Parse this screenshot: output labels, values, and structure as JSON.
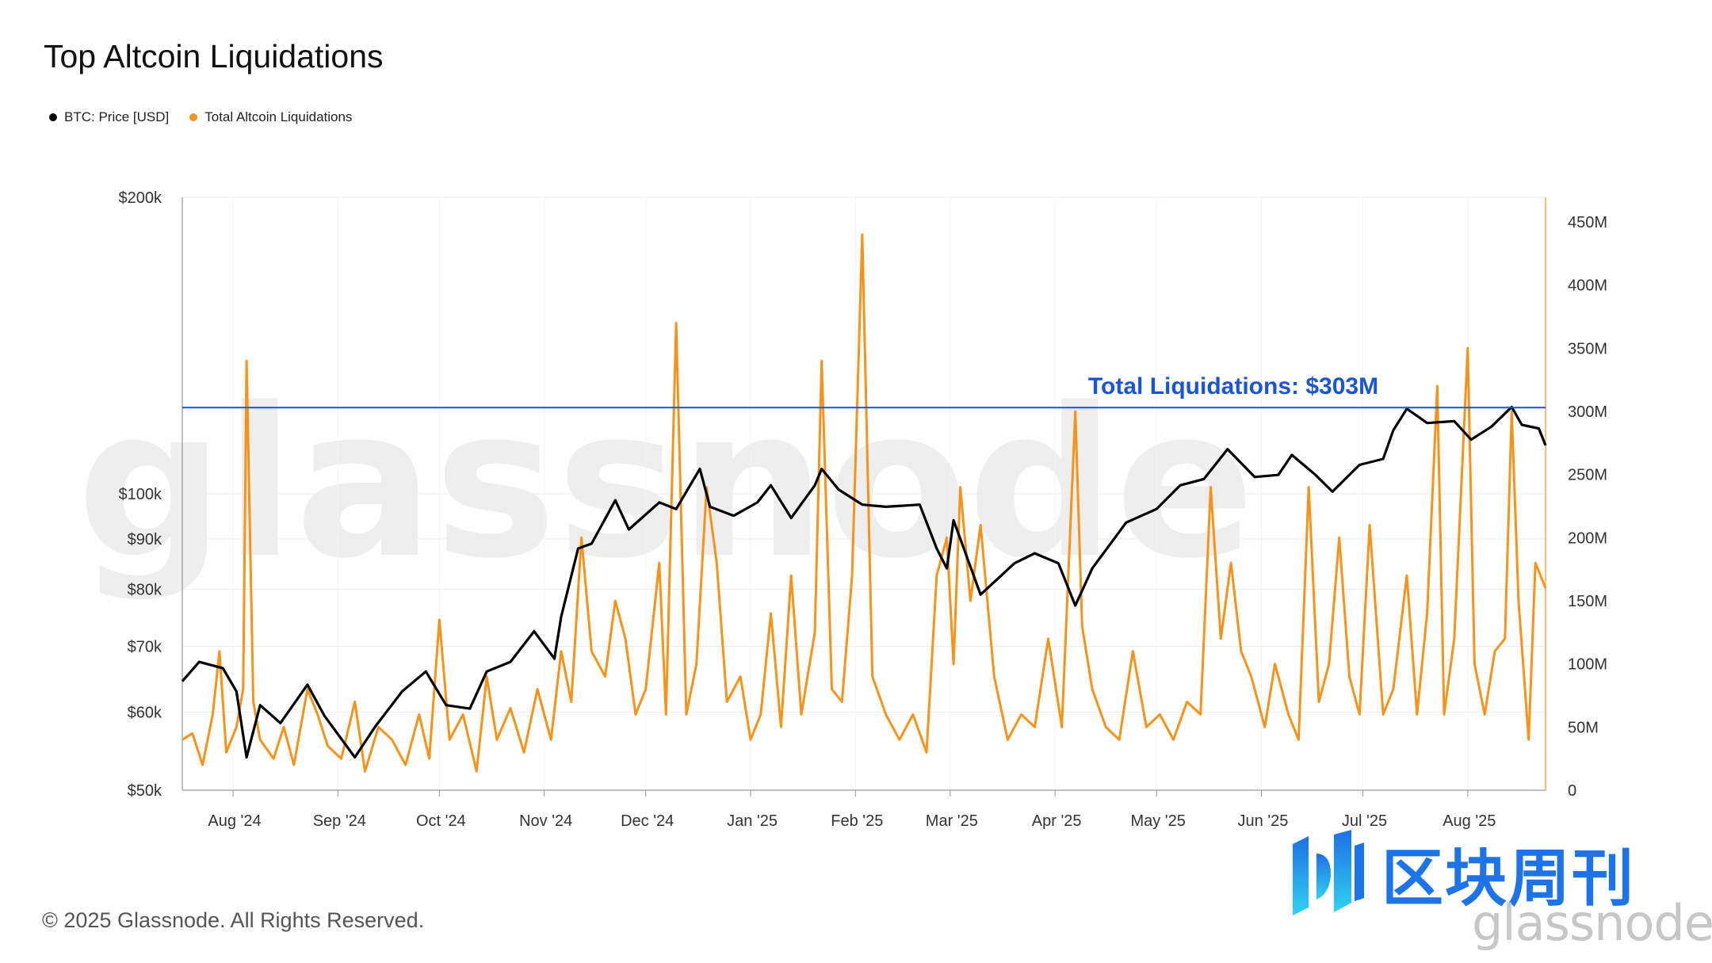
{
  "title": "Top Altcoin Liquidations",
  "footer": "© 2025 Glassnode. All Rights Reserved.",
  "watermark": "glassnode",
  "logo": {
    "text": "区块周刊",
    "icon": "blockchain-weekly-logo-icon",
    "color": "#1d74e8"
  },
  "colors": {
    "btc": "#000000",
    "liq": "#f7931a",
    "annotation": "#1a55d6",
    "grid": "#eeeeee"
  },
  "chart_data": {
    "type": "line",
    "title": "Top Altcoin Liquidations",
    "legend": {
      "placement": "top-left",
      "entries": [
        "BTC: Price [USD]",
        "Total Altcoin Liquidations"
      ]
    },
    "grid": true,
    "x_ticks": [
      "Aug '24",
      "Sep '24",
      "Oct '24",
      "Nov '24",
      "Dec '24",
      "Jan '25",
      "Feb '25",
      "Mar '25",
      "Apr '25",
      "May '25",
      "Jun '25",
      "Jul '25",
      "Aug '25"
    ],
    "x_range": [
      "2024-07-17",
      "2025-08-24"
    ],
    "y_left": {
      "scale": "log",
      "range": [
        50000,
        200000
      ],
      "ticks": [
        200000,
        100000,
        90000,
        80000,
        70000,
        60000,
        50000
      ],
      "tick_labels": [
        "$200k",
        "$100k",
        "$90k",
        "$80k",
        "$70k",
        "$60k",
        "$50k"
      ]
    },
    "y_right": {
      "scale": "linear",
      "range": [
        0,
        450
      ],
      "unit": "M",
      "ticks": [
        0,
        50,
        100,
        150,
        200,
        250,
        300,
        350,
        400,
        450
      ],
      "tick_labels": [
        "0",
        "50M",
        "100M",
        "150M",
        "200M",
        "250M",
        "300M",
        "350M",
        "400M",
        "450M"
      ]
    },
    "annotation": {
      "label": "Total Liquidations: $303M",
      "value": 303
    },
    "series": [
      {
        "name": "BTC: Price [USD]",
        "color": "#000000",
        "axis": "left",
        "points": [
          [
            "2024-07-17",
            64500
          ],
          [
            "2024-07-22",
            67500
          ],
          [
            "2024-07-29",
            66500
          ],
          [
            "2024-08-02",
            63000
          ],
          [
            "2024-08-05",
            54000
          ],
          [
            "2024-08-09",
            61000
          ],
          [
            "2024-08-15",
            58500
          ],
          [
            "2024-08-23",
            64000
          ],
          [
            "2024-08-28",
            59500
          ],
          [
            "2024-09-06",
            54000
          ],
          [
            "2024-09-12",
            58000
          ],
          [
            "2024-09-20",
            63000
          ],
          [
            "2024-09-27",
            66000
          ],
          [
            "2024-10-03",
            61000
          ],
          [
            "2024-10-10",
            60500
          ],
          [
            "2024-10-15",
            66000
          ],
          [
            "2024-10-22",
            67500
          ],
          [
            "2024-10-29",
            72500
          ],
          [
            "2024-11-04",
            68000
          ],
          [
            "2024-11-06",
            75000
          ],
          [
            "2024-11-11",
            88000
          ],
          [
            "2024-11-15",
            89000
          ],
          [
            "2024-11-22",
            98500
          ],
          [
            "2024-11-26",
            92000
          ],
          [
            "2024-12-05",
            98000
          ],
          [
            "2024-12-10",
            96500
          ],
          [
            "2024-12-17",
            106000
          ],
          [
            "2024-12-20",
            97000
          ],
          [
            "2024-12-27",
            95000
          ],
          [
            "2025-01-03",
            98000
          ],
          [
            "2025-01-07",
            102000
          ],
          [
            "2025-01-13",
            94500
          ],
          [
            "2025-01-20",
            102000
          ],
          [
            "2025-01-22",
            106000
          ],
          [
            "2025-01-27",
            101000
          ],
          [
            "2025-02-03",
            97500
          ],
          [
            "2025-02-10",
            97000
          ],
          [
            "2025-02-20",
            97500
          ],
          [
            "2025-02-25",
            88000
          ],
          [
            "2025-02-28",
            84000
          ],
          [
            "2025-03-02",
            94000
          ],
          [
            "2025-03-10",
            79000
          ],
          [
            "2025-03-20",
            85000
          ],
          [
            "2025-03-26",
            87000
          ],
          [
            "2025-04-02",
            85000
          ],
          [
            "2025-04-07",
            77000
          ],
          [
            "2025-04-12",
            84000
          ],
          [
            "2025-04-22",
            93500
          ],
          [
            "2025-05-01",
            96500
          ],
          [
            "2025-05-08",
            102000
          ],
          [
            "2025-05-15",
            103500
          ],
          [
            "2025-05-22",
            111000
          ],
          [
            "2025-05-30",
            104000
          ],
          [
            "2025-06-06",
            104500
          ],
          [
            "2025-06-10",
            109500
          ],
          [
            "2025-06-17",
            104500
          ],
          [
            "2025-06-22",
            100500
          ],
          [
            "2025-06-30",
            107000
          ],
          [
            "2025-07-07",
            108500
          ],
          [
            "2025-07-10",
            116000
          ],
          [
            "2025-07-14",
            122000
          ],
          [
            "2025-07-20",
            118000
          ],
          [
            "2025-07-28",
            118500
          ],
          [
            "2025-08-02",
            113500
          ],
          [
            "2025-08-08",
            117000
          ],
          [
            "2025-08-14",
            122500
          ],
          [
            "2025-08-17",
            117500
          ],
          [
            "2025-08-22",
            116500
          ],
          [
            "2025-08-24",
            112000
          ]
        ]
      },
      {
        "name": "Total Altcoin Liquidations",
        "color": "#f7931a",
        "axis": "right",
        "points": [
          [
            "2024-07-17",
            40
          ],
          [
            "2024-07-20",
            45
          ],
          [
            "2024-07-23",
            20
          ],
          [
            "2024-07-26",
            60
          ],
          [
            "2024-07-28",
            110
          ],
          [
            "2024-07-30",
            30
          ],
          [
            "2024-08-02",
            50
          ],
          [
            "2024-08-04",
            80
          ],
          [
            "2024-08-05",
            340
          ],
          [
            "2024-08-07",
            70
          ],
          [
            "2024-08-09",
            40
          ],
          [
            "2024-08-13",
            25
          ],
          [
            "2024-08-16",
            50
          ],
          [
            "2024-08-19",
            20
          ],
          [
            "2024-08-23",
            80
          ],
          [
            "2024-08-26",
            60
          ],
          [
            "2024-08-29",
            35
          ],
          [
            "2024-09-02",
            25
          ],
          [
            "2024-09-06",
            70
          ],
          [
            "2024-09-09",
            15
          ],
          [
            "2024-09-13",
            50
          ],
          [
            "2024-09-17",
            40
          ],
          [
            "2024-09-21",
            20
          ],
          [
            "2024-09-25",
            60
          ],
          [
            "2024-09-28",
            25
          ],
          [
            "2024-10-01",
            135
          ],
          [
            "2024-10-04",
            40
          ],
          [
            "2024-10-08",
            60
          ],
          [
            "2024-10-12",
            15
          ],
          [
            "2024-10-15",
            90
          ],
          [
            "2024-10-18",
            40
          ],
          [
            "2024-10-22",
            65
          ],
          [
            "2024-10-26",
            30
          ],
          [
            "2024-10-30",
            80
          ],
          [
            "2024-11-03",
            40
          ],
          [
            "2024-11-06",
            110
          ],
          [
            "2024-11-09",
            70
          ],
          [
            "2024-11-12",
            200
          ],
          [
            "2024-11-15",
            110
          ],
          [
            "2024-11-19",
            90
          ],
          [
            "2024-11-22",
            150
          ],
          [
            "2024-11-25",
            120
          ],
          [
            "2024-11-28",
            60
          ],
          [
            "2024-12-01",
            80
          ],
          [
            "2024-12-05",
            180
          ],
          [
            "2024-12-07",
            60
          ],
          [
            "2024-12-10",
            370
          ],
          [
            "2024-12-13",
            60
          ],
          [
            "2024-12-16",
            100
          ],
          [
            "2024-12-19",
            240
          ],
          [
            "2024-12-22",
            180
          ],
          [
            "2024-12-25",
            70
          ],
          [
            "2024-12-29",
            90
          ],
          [
            "2025-01-01",
            40
          ],
          [
            "2025-01-04",
            60
          ],
          [
            "2025-01-07",
            140
          ],
          [
            "2025-01-10",
            50
          ],
          [
            "2025-01-13",
            170
          ],
          [
            "2025-01-16",
            60
          ],
          [
            "2025-01-20",
            125
          ],
          [
            "2025-01-22",
            340
          ],
          [
            "2025-01-25",
            80
          ],
          [
            "2025-01-28",
            70
          ],
          [
            "2025-01-31",
            170
          ],
          [
            "2025-02-03",
            440
          ],
          [
            "2025-02-06",
            90
          ],
          [
            "2025-02-10",
            60
          ],
          [
            "2025-02-14",
            40
          ],
          [
            "2025-02-18",
            60
          ],
          [
            "2025-02-22",
            30
          ],
          [
            "2025-02-25",
            170
          ],
          [
            "2025-02-28",
            200
          ],
          [
            "2025-03-02",
            100
          ],
          [
            "2025-03-04",
            240
          ],
          [
            "2025-03-07",
            150
          ],
          [
            "2025-03-10",
            210
          ],
          [
            "2025-03-14",
            90
          ],
          [
            "2025-03-18",
            40
          ],
          [
            "2025-03-22",
            60
          ],
          [
            "2025-03-26",
            50
          ],
          [
            "2025-03-30",
            120
          ],
          [
            "2025-04-03",
            50
          ],
          [
            "2025-04-07",
            300
          ],
          [
            "2025-04-09",
            130
          ],
          [
            "2025-04-12",
            80
          ],
          [
            "2025-04-16",
            50
          ],
          [
            "2025-04-20",
            40
          ],
          [
            "2025-04-24",
            110
          ],
          [
            "2025-04-28",
            50
          ],
          [
            "2025-05-02",
            60
          ],
          [
            "2025-05-06",
            40
          ],
          [
            "2025-05-10",
            70
          ],
          [
            "2025-05-14",
            60
          ],
          [
            "2025-05-17",
            240
          ],
          [
            "2025-05-20",
            120
          ],
          [
            "2025-05-23",
            180
          ],
          [
            "2025-05-26",
            110
          ],
          [
            "2025-05-29",
            90
          ],
          [
            "2025-06-02",
            50
          ],
          [
            "2025-06-05",
            100
          ],
          [
            "2025-06-09",
            60
          ],
          [
            "2025-06-12",
            40
          ],
          [
            "2025-06-15",
            240
          ],
          [
            "2025-06-18",
            70
          ],
          [
            "2025-06-21",
            100
          ],
          [
            "2025-06-24",
            200
          ],
          [
            "2025-06-27",
            90
          ],
          [
            "2025-06-30",
            60
          ],
          [
            "2025-07-03",
            210
          ],
          [
            "2025-07-07",
            60
          ],
          [
            "2025-07-10",
            80
          ],
          [
            "2025-07-14",
            170
          ],
          [
            "2025-07-17",
            60
          ],
          [
            "2025-07-20",
            140
          ],
          [
            "2025-07-23",
            320
          ],
          [
            "2025-07-25",
            60
          ],
          [
            "2025-07-28",
            120
          ],
          [
            "2025-08-01",
            350
          ],
          [
            "2025-08-03",
            100
          ],
          [
            "2025-08-06",
            60
          ],
          [
            "2025-08-09",
            110
          ],
          [
            "2025-08-12",
            120
          ],
          [
            "2025-08-14",
            300
          ],
          [
            "2025-08-16",
            150
          ],
          [
            "2025-08-19",
            40
          ],
          [
            "2025-08-21",
            180
          ],
          [
            "2025-08-24",
            160
          ]
        ]
      }
    ]
  }
}
